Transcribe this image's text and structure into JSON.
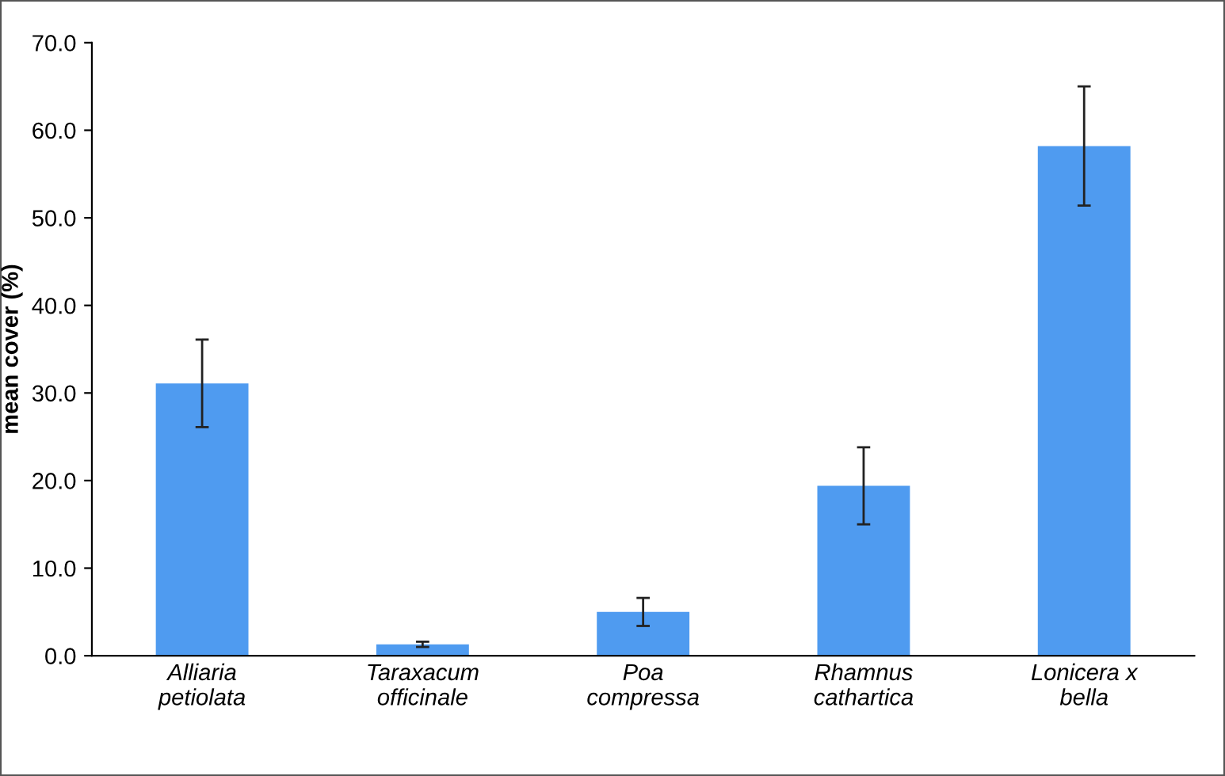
{
  "chart_data": {
    "type": "bar",
    "ylabel": "mean cover (%)",
    "categories": [
      "Alliaria\npetiolata",
      "Taraxacum\nofficinale",
      "Poa\ncompressa",
      "Rhamnus\ncathartica",
      "Lonicera x\nbella"
    ],
    "values": [
      31.1,
      1.3,
      5.0,
      19.4,
      58.2
    ],
    "errors": [
      5.0,
      0.3,
      1.6,
      4.4,
      6.8
    ],
    "color": "#4f9bf0",
    "ylim": [
      0,
      70
    ],
    "yticks": [
      {
        "value": 0,
        "label": "0.0"
      },
      {
        "value": 10,
        "label": "10.0"
      },
      {
        "value": 20,
        "label": "20.0"
      },
      {
        "value": 30,
        "label": "30.0"
      },
      {
        "value": 40,
        "label": "40.0"
      },
      {
        "value": 50,
        "label": "50.0"
      },
      {
        "value": 60,
        "label": "60.0"
      },
      {
        "value": 70,
        "label": "70.0"
      }
    ],
    "grid": false,
    "legend": false
  }
}
